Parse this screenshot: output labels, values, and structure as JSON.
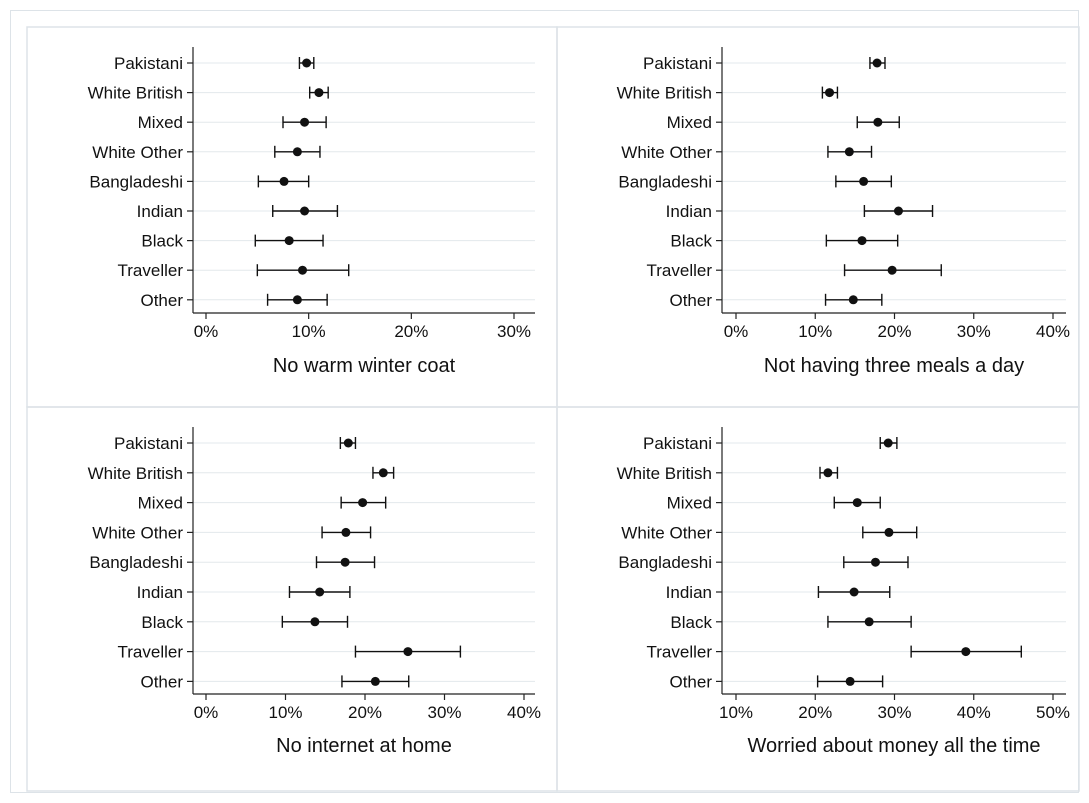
{
  "figure": {
    "percent_suffix": "%",
    "colors": {
      "marker": "#111111",
      "axis": "#222222",
      "grid": "#e3e8ec",
      "panel_border": "#dde3e8"
    }
  },
  "chart_data": [
    {
      "type": "scatter",
      "title": "",
      "xlabel": "No warm winter coat",
      "ylabel": "",
      "xlim": [
        0,
        30
      ],
      "xticks": [
        0,
        10,
        20,
        30
      ],
      "grid": true,
      "categories": [
        "Pakistani",
        "White British",
        "Mixed",
        "White Other",
        "Bangladeshi",
        "Indian",
        "Black",
        "Traveller",
        "Other"
      ],
      "values": [
        9.8,
        11.0,
        9.6,
        8.9,
        7.6,
        9.6,
        8.1,
        9.4,
        8.9
      ],
      "lower": [
        9.1,
        10.1,
        7.5,
        6.7,
        5.1,
        6.5,
        4.8,
        5.0,
        6.0
      ],
      "upper": [
        10.5,
        11.9,
        11.7,
        11.1,
        10.0,
        12.8,
        11.4,
        13.9,
        11.8
      ]
    },
    {
      "type": "scatter",
      "title": "",
      "xlabel": "Not having three meals a day",
      "ylabel": "",
      "xlim": [
        0,
        40
      ],
      "xticks": [
        0,
        10,
        20,
        30,
        40
      ],
      "grid": true,
      "categories": [
        "Pakistani",
        "White British",
        "Mixed",
        "White Other",
        "Bangladeshi",
        "Indian",
        "Black",
        "Traveller",
        "Other"
      ],
      "values": [
        17.8,
        11.8,
        17.9,
        14.3,
        16.1,
        20.5,
        15.9,
        19.7,
        14.8
      ],
      "lower": [
        16.9,
        10.9,
        15.3,
        11.6,
        12.6,
        16.2,
        11.4,
        13.7,
        11.3
      ],
      "upper": [
        18.8,
        12.8,
        20.6,
        17.1,
        19.6,
        24.8,
        20.4,
        25.9,
        18.4
      ]
    },
    {
      "type": "scatter",
      "title": "",
      "xlabel": "No internet at home",
      "ylabel": "",
      "xlim": [
        0,
        40
      ],
      "xticks": [
        0,
        10,
        20,
        30,
        40
      ],
      "grid": true,
      "categories": [
        "Pakistani",
        "White British",
        "Mixed",
        "White Other",
        "Bangladeshi",
        "Indian",
        "Black",
        "Traveller",
        "Other"
      ],
      "values": [
        17.9,
        22.3,
        19.7,
        17.6,
        17.5,
        14.3,
        13.7,
        25.4,
        21.3
      ],
      "lower": [
        16.9,
        21.0,
        17.0,
        14.6,
        13.9,
        10.5,
        9.6,
        18.8,
        17.1
      ],
      "upper": [
        18.8,
        23.6,
        22.6,
        20.7,
        21.2,
        18.1,
        17.8,
        32.0,
        25.5
      ]
    },
    {
      "type": "scatter",
      "title": "",
      "xlabel": "Worried about money all the time",
      "ylabel": "",
      "xlim": [
        10,
        50
      ],
      "xticks": [
        10,
        20,
        30,
        40,
        50
      ],
      "grid": true,
      "categories": [
        "Pakistani",
        "White British",
        "Mixed",
        "White Other",
        "Bangladeshi",
        "Indian",
        "Black",
        "Traveller",
        "Other"
      ],
      "values": [
        29.2,
        21.6,
        25.3,
        29.3,
        27.6,
        24.9,
        26.8,
        39.0,
        24.4
      ],
      "lower": [
        28.2,
        20.6,
        22.4,
        26.0,
        23.6,
        20.4,
        21.6,
        32.1,
        20.3
      ],
      "upper": [
        30.3,
        22.8,
        28.2,
        32.8,
        31.7,
        29.4,
        32.1,
        46.0,
        28.5
      ]
    }
  ]
}
